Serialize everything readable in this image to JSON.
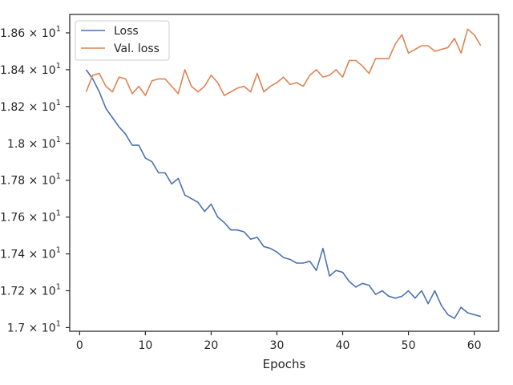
{
  "chart_data": {
    "type": "line",
    "title": "",
    "xlabel": "Epochs",
    "ylabel": "",
    "xlim": [
      -1.5,
      63.7
    ],
    "ylim": [
      16.98,
      18.7
    ],
    "xticks": [
      0,
      10,
      20,
      30,
      40,
      50,
      60
    ],
    "xtick_labels": [
      "0",
      "10",
      "20",
      "30",
      "40",
      "50",
      "60"
    ],
    "yticks": [
      17.0,
      17.2,
      17.4,
      17.6,
      17.8,
      18.0,
      18.2,
      18.4,
      18.6
    ],
    "ytick_mantissas": [
      "1.7",
      "1.72",
      "1.74",
      "1.76",
      "1.78",
      "1.8",
      "1.82",
      "1.84",
      "1.86"
    ],
    "ytick_times": "×",
    "ytick_base": "10",
    "ytick_exponent": "1",
    "grid": false,
    "legend_position": "top-left",
    "x": [
      1,
      2,
      3,
      4,
      5,
      6,
      7,
      8,
      9,
      10,
      11,
      12,
      13,
      14,
      15,
      16,
      17,
      18,
      19,
      20,
      21,
      22,
      23,
      24,
      25,
      26,
      27,
      28,
      29,
      30,
      31,
      32,
      33,
      34,
      35,
      36,
      37,
      38,
      39,
      40,
      41,
      42,
      43,
      44,
      45,
      46,
      47,
      48,
      49,
      50,
      51,
      52,
      53,
      54,
      55,
      56,
      57,
      58,
      59,
      60,
      61
    ],
    "series": [
      {
        "name": "Loss",
        "color": "#4c72b0",
        "values": [
          18.4,
          18.35,
          18.28,
          18.19,
          18.14,
          18.09,
          18.05,
          17.99,
          17.99,
          17.92,
          17.9,
          17.84,
          17.84,
          17.78,
          17.81,
          17.72,
          17.7,
          17.68,
          17.63,
          17.67,
          17.6,
          17.57,
          17.53,
          17.53,
          17.52,
          17.48,
          17.49,
          17.44,
          17.43,
          17.41,
          17.38,
          17.37,
          17.35,
          17.35,
          17.36,
          17.31,
          17.43,
          17.28,
          17.31,
          17.3,
          17.25,
          17.22,
          17.24,
          17.23,
          17.18,
          17.2,
          17.17,
          17.16,
          17.17,
          17.2,
          17.16,
          17.2,
          17.13,
          17.2,
          17.12,
          17.07,
          17.05,
          17.11,
          17.08,
          17.07,
          17.06
        ]
      },
      {
        "name": "Val. loss",
        "color": "#dd8452",
        "values": [
          18.28,
          18.37,
          18.38,
          18.31,
          18.28,
          18.36,
          18.35,
          18.27,
          18.31,
          18.26,
          18.34,
          18.35,
          18.35,
          18.31,
          18.27,
          18.4,
          18.31,
          18.28,
          18.31,
          18.37,
          18.33,
          18.26,
          18.28,
          18.3,
          18.31,
          18.28,
          18.38,
          18.28,
          18.31,
          18.33,
          18.36,
          18.32,
          18.33,
          18.31,
          18.37,
          18.4,
          18.36,
          18.37,
          18.4,
          18.36,
          18.45,
          18.45,
          18.42,
          18.38,
          18.46,
          18.46,
          18.46,
          18.54,
          18.59,
          18.49,
          18.51,
          18.53,
          18.53,
          18.5,
          18.51,
          18.52,
          18.57,
          18.49,
          18.62,
          18.59,
          18.53
        ]
      }
    ]
  }
}
